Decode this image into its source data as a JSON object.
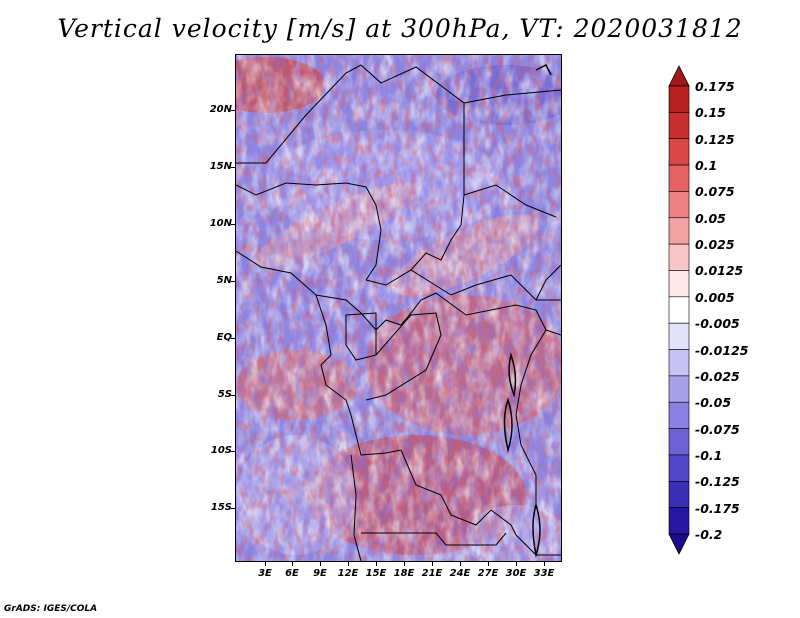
{
  "title": "Vertical velocity [m/s] at 300hPa, VT: 2020031812",
  "credit": "GrADS: IGES/COLA",
  "lat_labels": [
    "20N",
    "15N",
    "10N",
    "5N",
    "EQ",
    "5S",
    "10S",
    "15S"
  ],
  "lon_labels": [
    "3E",
    "6E",
    "9E",
    "12E",
    "15E",
    "18E",
    "21E",
    "24E",
    "27E",
    "30E",
    "33E"
  ],
  "colorbar": {
    "labels": [
      "0.175",
      "0.15",
      "0.125",
      "0.1",
      "0.075",
      "0.05",
      "0.025",
      "0.0125",
      "0.005",
      "-0.005",
      "-0.0125",
      "-0.025",
      "-0.05",
      "-0.075",
      "-0.1",
      "-0.125",
      "-0.175",
      "-0.2"
    ],
    "colors": [
      "#a01818",
      "#b82020",
      "#c83030",
      "#d84646",
      "#e46262",
      "#ec8282",
      "#f2a2a2",
      "#f8c6c6",
      "#fce8e8",
      "#ffffff",
      "#e4e2fa",
      "#c6c2f4",
      "#a8a2ec",
      "#8a82e2",
      "#6c62d6",
      "#5046c8",
      "#3a2eb6",
      "#2616a0",
      "#1a0c88"
    ]
  },
  "chart_data": {
    "type": "heatmap",
    "variable": "Vertical velocity",
    "units": "m/s",
    "level": "300hPa",
    "valid_time": "2020031812",
    "lon_range": [
      0,
      35
    ],
    "lat_range": [
      -20,
      24
    ],
    "color_levels": [
      -0.2,
      -0.175,
      -0.125,
      -0.1,
      -0.075,
      -0.05,
      -0.025,
      -0.0125,
      -0.005,
      0.005,
      0.0125,
      0.025,
      0.05,
      0.075,
      0.1,
      0.125,
      0.15,
      0.175
    ]
  }
}
